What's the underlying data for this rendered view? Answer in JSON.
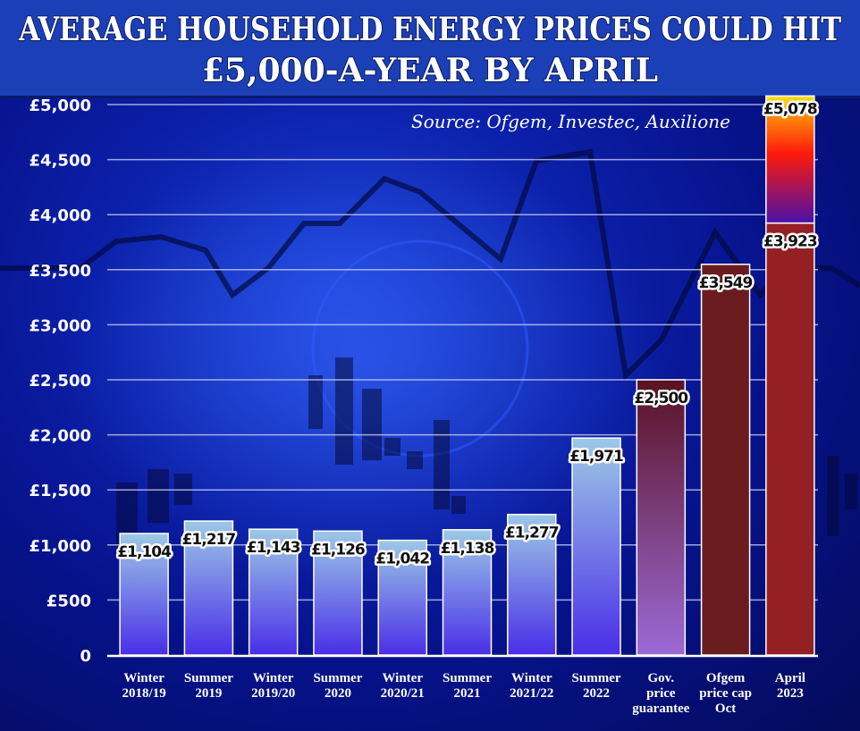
{
  "header": {
    "title_line_1": "AVERAGE HOUSEHOLD ENERGY PRICES COULD HIT",
    "title_line_2": "£5,000-A-YEAR BY APRIL"
  },
  "colors": {
    "title_bg": "#1b3fb7",
    "blue_bar_top": "#9dc9e6",
    "blue_bar_bottom": "#4a2ee8",
    "guarantee_top": "#5a1222",
    "guarantee_bottom": "#9c6ad6",
    "ofgem_oct": "#6b1c1e",
    "april_base": "#952024",
    "april_extra_top": "#ffe21a",
    "april_extra_mid": "#ff1a0a",
    "april_extra_bottom": "#4a10a8"
  },
  "chart_data": {
    "type": "bar",
    "title": "AVERAGE HOUSEHOLD ENERGY PRICES COULD HIT £5,000-A-YEAR BY APRIL",
    "source": "Source: Ofgem, Investec, Auxilione",
    "xlabel": "",
    "ylabel": "",
    "ylim": [
      0,
      5000
    ],
    "grid": true,
    "yticks": [
      0,
      500,
      1000,
      1500,
      2000,
      2500,
      3000,
      3500,
      4000,
      4500,
      5000
    ],
    "ytick_labels": [
      "0",
      "£500",
      "£1,000",
      "£1,500",
      "£2,000",
      "£2,500",
      "£3,000",
      "£3,500",
      "£4,000",
      "£4,500",
      "£5,000"
    ],
    "categories": [
      [
        "Winter",
        "2018/19"
      ],
      [
        "Summer",
        "2019"
      ],
      [
        "Winter",
        "2019/20"
      ],
      [
        "Summer",
        "2020"
      ],
      [
        "Winter",
        "2020/21"
      ],
      [
        "Summer",
        "2021"
      ],
      [
        "Winter",
        "2021/22"
      ],
      [
        "Summer",
        "2022"
      ],
      [
        "Gov.",
        "price",
        "guarantee"
      ],
      [
        "Ofgem",
        "price cap",
        "Oct"
      ],
      [
        "April",
        "2023"
      ]
    ],
    "values": [
      1104,
      1217,
      1143,
      1126,
      1042,
      1138,
      1277,
      1971,
      2500,
      3549,
      3923
    ],
    "value_labels": [
      "£1,104",
      "£1,217",
      "£1,143",
      "£1,126",
      "£1,042",
      "£1,138",
      "£1,277",
      "£1,971",
      "£2,500",
      "£3,549",
      "£3,923"
    ],
    "styles": [
      "blue",
      "blue",
      "blue",
      "blue",
      "blue",
      "blue",
      "blue",
      "blue",
      "guarantee",
      "ofgem",
      "april"
    ],
    "extension": {
      "category_index": 10,
      "value": 5078,
      "label": "£5,078"
    }
  }
}
